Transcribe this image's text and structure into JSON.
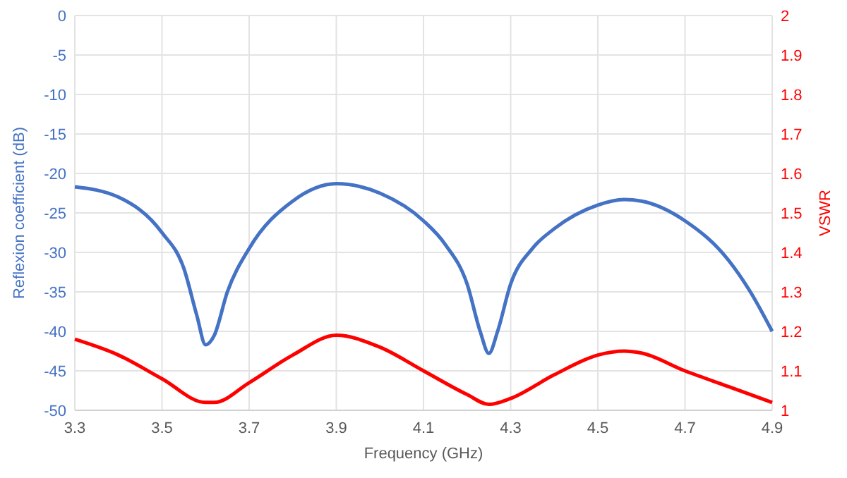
{
  "chart_data": {
    "type": "line",
    "xlabel": "Frequency (GHz)",
    "ylabel": "Reflexion coefficient (dB)",
    "y2label": "VSWR",
    "xlim": [
      3.3,
      4.9
    ],
    "xticks": [
      3.3,
      3.5,
      3.7,
      3.9,
      4.1,
      4.3,
      4.5,
      4.7,
      4.9
    ],
    "ylim": [
      -50,
      0
    ],
    "yticks": [
      -50,
      -45,
      -40,
      -35,
      -30,
      -25,
      -20,
      -15,
      -10,
      -5,
      0
    ],
    "y2lim": [
      1,
      2
    ],
    "y2ticks": [
      1,
      1.1,
      1.2,
      1.3,
      1.4,
      1.5,
      1.6,
      1.7,
      1.8,
      1.9,
      2
    ],
    "grid": true,
    "marker": "none",
    "line_style": "solid",
    "series": [
      {
        "color": "#4472c4",
        "x": [
          3.3,
          3.4,
          3.5,
          3.55,
          3.58,
          3.6,
          3.62,
          3.65,
          3.7,
          3.8,
          3.9,
          4.0,
          4.1,
          4.15,
          4.2,
          4.23,
          4.25,
          4.27,
          4.3,
          4.35,
          4.4,
          4.5,
          4.56,
          4.6,
          4.7,
          4.8,
          4.85,
          4.9
        ],
        "values": [
          -21.7,
          -23,
          -27.5,
          -32,
          -38,
          -41.7,
          -40.5,
          -35,
          -29.5,
          -23.5,
          -21.3,
          -22.5,
          -26,
          -29,
          -34,
          -40,
          -42.8,
          -40,
          -34,
          -29.5,
          -27,
          -24,
          -23.3,
          -23.5,
          -26,
          -31,
          -35,
          -40
        ]
      },
      {
        "color": "#ff0000",
        "axis": "y2",
        "x": [
          3.3,
          3.4,
          3.5,
          3.6,
          3.62,
          3.7,
          3.8,
          3.9,
          4.0,
          4.1,
          4.2,
          4.25,
          4.3,
          4.4,
          4.5,
          4.56,
          4.6,
          4.7,
          4.8,
          4.9
        ],
        "values": [
          1.18,
          1.14,
          1.08,
          1.02,
          1.02,
          1.07,
          1.14,
          1.19,
          1.16,
          1.1,
          1.04,
          1.015,
          1.03,
          1.09,
          1.14,
          1.15,
          1.145,
          1.1,
          1.06,
          1.02
        ]
      }
    ]
  }
}
